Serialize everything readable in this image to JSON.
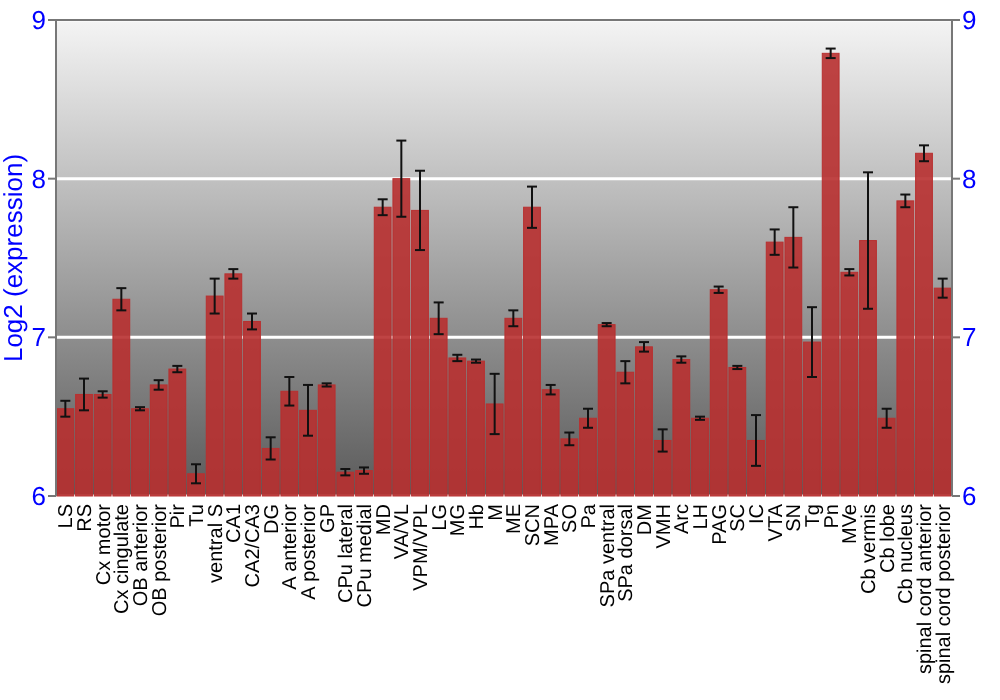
{
  "chart_data": {
    "type": "bar",
    "ylabel": "Log2 (expression)",
    "categories": [
      "LS",
      "RS",
      "Cx motor",
      "Cx cingulate",
      "OB anterior",
      "OB posterior",
      "Pir",
      "Tu",
      "ventral S",
      "CA1",
      "CA2/CA3",
      "DG",
      "A anterior",
      "A posterior",
      "GP",
      "CPu lateral",
      "CPu medial",
      "MD",
      "VA/VL",
      "VPM/VPL",
      "LG",
      "MG",
      "Hb",
      "M",
      "ME",
      "SCN",
      "MPA",
      "SO",
      "Pa",
      "SPa ventral",
      "SPa dorsal",
      "DM",
      "VMH",
      "Arc",
      "LH",
      "PAG",
      "SC",
      "IC",
      "VTA",
      "SN",
      "Tg",
      "Pn",
      "MVe",
      "Cb vermis",
      "Cb lobe",
      "Cb nucleus",
      "spinal cord anterior",
      "spinal cord posterior"
    ],
    "values": [
      6.55,
      6.64,
      6.64,
      7.24,
      6.55,
      6.7,
      6.8,
      6.14,
      7.26,
      7.4,
      7.1,
      6.3,
      6.66,
      6.54,
      6.7,
      6.15,
      6.16,
      7.82,
      8.0,
      7.8,
      7.12,
      6.87,
      6.85,
      6.58,
      7.12,
      7.82,
      6.67,
      6.36,
      6.49,
      7.08,
      6.78,
      6.94,
      6.35,
      6.86,
      6.49,
      7.3,
      6.81,
      6.35,
      7.6,
      7.63,
      6.97,
      8.79,
      7.41,
      7.61,
      6.49,
      7.86,
      8.16,
      7.31
    ],
    "errors": [
      0.05,
      0.1,
      0.02,
      0.07,
      0.01,
      0.03,
      0.02,
      0.06,
      0.11,
      0.03,
      0.05,
      0.07,
      0.09,
      0.16,
      0.01,
      0.02,
      0.02,
      0.05,
      0.24,
      0.25,
      0.1,
      0.02,
      0.01,
      0.19,
      0.05,
      0.13,
      0.03,
      0.04,
      0.06,
      0.01,
      0.07,
      0.03,
      0.07,
      0.02,
      0.01,
      0.02,
      0.01,
      0.16,
      0.08,
      0.19,
      0.22,
      0.03,
      0.02,
      0.43,
      0.06,
      0.04,
      0.05,
      0.06
    ],
    "color": "#b83030",
    "ylim": [
      6,
      9
    ],
    "yticks": [
      6,
      7,
      8,
      9
    ],
    "y2lim": [
      6,
      9
    ],
    "y2ticks": [
      6,
      7,
      8,
      9
    ],
    "grid": "y"
  }
}
